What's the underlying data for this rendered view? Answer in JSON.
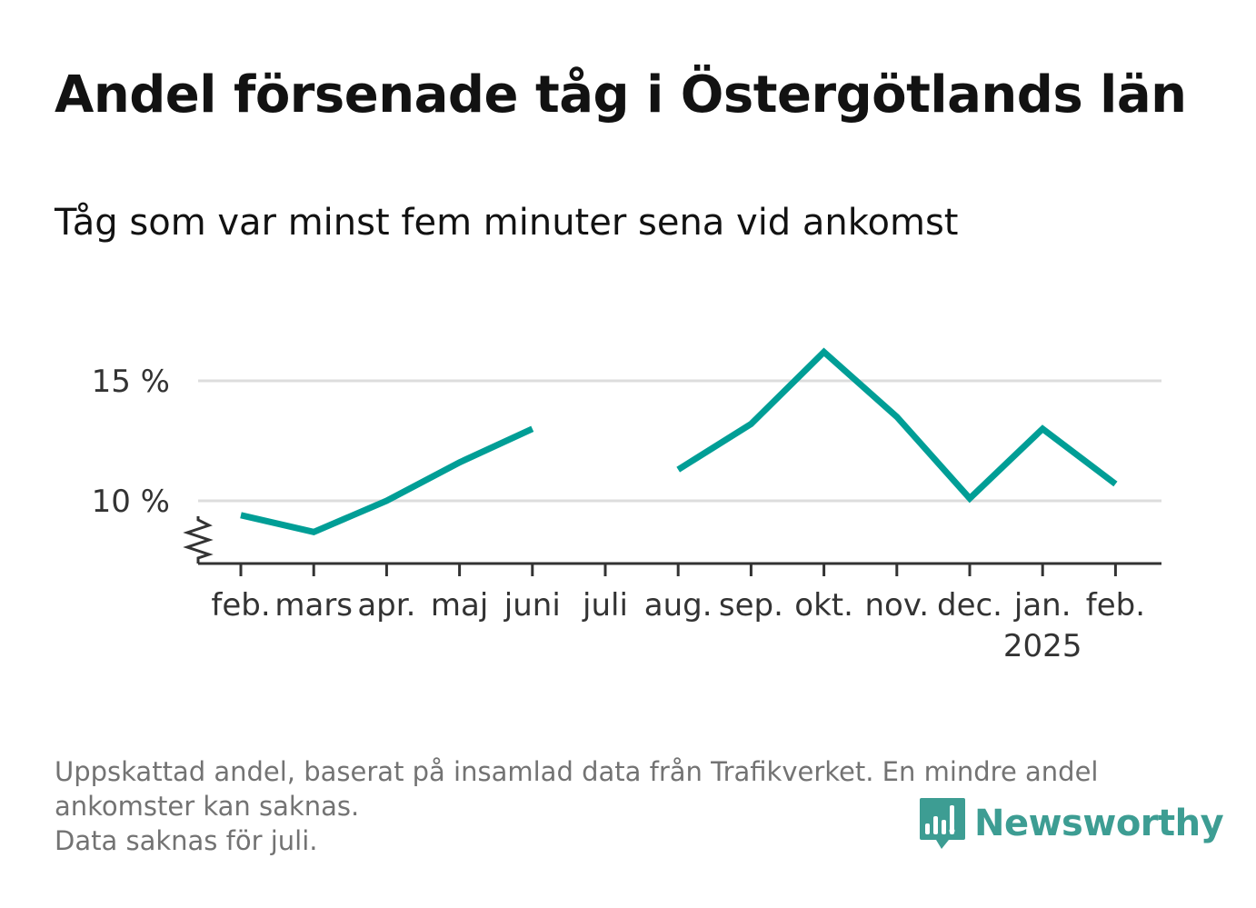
{
  "title": "Andel försenade tåg i Östergötlands län",
  "subtitle": "Tåg som var minst fem minuter sena vid ankomst",
  "footnote": {
    "line1": "Uppskattad andel, baserat på insamlad data från Trafikverket. En mindre andel",
    "line2": "ankomster kan saknas.",
    "line3": "Data saknas för juli."
  },
  "brand": {
    "name": "Newsworthy",
    "color": "#3d9d93"
  },
  "colors": {
    "line": "#009e96",
    "grid": "#dddddd",
    "axis": "#333333",
    "text": "#333333"
  },
  "chart_data": {
    "type": "line",
    "title": "Andel försenade tåg i Östergötlands län",
    "subtitle": "Tåg som var minst fem minuter sena vid ankomst",
    "categories": [
      "feb.",
      "mars",
      "apr.",
      "maj",
      "juni",
      "juli",
      "aug.",
      "sep.",
      "okt.",
      "nov.",
      "dec.",
      "jan.",
      "feb."
    ],
    "year_labels": [
      "",
      "",
      "",
      "",
      "",
      "",
      "",
      "",
      "",
      "",
      "",
      "2025",
      ""
    ],
    "series": [
      {
        "values": [
          9.4,
          8.7,
          10.0,
          11.6,
          13.0,
          null,
          11.3,
          13.2,
          16.2,
          13.5,
          10.1,
          13.0,
          10.7
        ]
      }
    ],
    "yticks": [
      10,
      15
    ],
    "ytick_labels": [
      "10 %",
      "15 %"
    ],
    "ylim": [
      7.5,
      17.5
    ],
    "axis_break": true,
    "grid": true,
    "legend": "none"
  }
}
